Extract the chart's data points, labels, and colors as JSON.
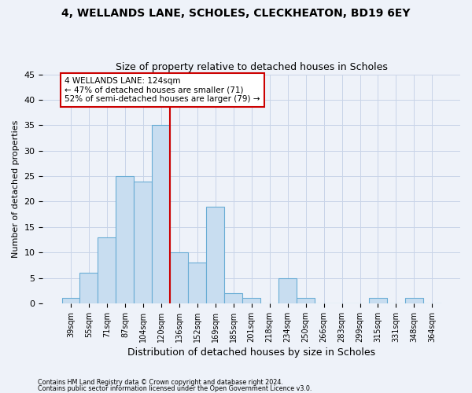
{
  "title1": "4, WELLANDS LANE, SCHOLES, CLECKHEATON, BD19 6EY",
  "title2": "Size of property relative to detached houses in Scholes",
  "xlabel": "Distribution of detached houses by size in Scholes",
  "ylabel": "Number of detached properties",
  "footnote1": "Contains HM Land Registry data © Crown copyright and database right 2024.",
  "footnote2": "Contains public sector information licensed under the Open Government Licence v3.0.",
  "categories": [
    "39sqm",
    "55sqm",
    "71sqm",
    "87sqm",
    "104sqm",
    "120sqm",
    "136sqm",
    "152sqm",
    "169sqm",
    "185sqm",
    "201sqm",
    "218sqm",
    "234sqm",
    "250sqm",
    "266sqm",
    "283sqm",
    "299sqm",
    "315sqm",
    "331sqm",
    "348sqm",
    "364sqm"
  ],
  "values": [
    1,
    6,
    13,
    25,
    24,
    35,
    10,
    8,
    19,
    2,
    1,
    0,
    5,
    1,
    0,
    0,
    0,
    1,
    0,
    1,
    0
  ],
  "bar_color": "#c8ddf0",
  "bar_edge_color": "#6aadd5",
  "grid_color": "#c8d4e8",
  "bg_color": "#eef2f9",
  "vline_color": "#cc0000",
  "vline_position": 5.5,
  "annotation_line1": "4 WELLANDS LANE: 124sqm",
  "annotation_line2": "← 47% of detached houses are smaller (71)",
  "annotation_line3": "52% of semi-detached houses are larger (79) →",
  "annotation_box_edgecolor": "#cc0000",
  "annotation_box_facecolor": "#ffffff",
  "ylim": [
    0,
    45
  ],
  "yticks": [
    0,
    5,
    10,
    15,
    20,
    25,
    30,
    35,
    40,
    45
  ]
}
